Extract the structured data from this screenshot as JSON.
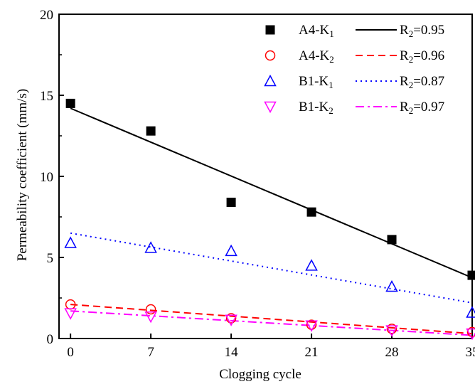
{
  "chart_data": {
    "type": "scatter",
    "title": "",
    "xlabel": "Clogging cycle",
    "ylabel": "Permeability coefficient (mm/s)",
    "xlim": [
      -1,
      35
    ],
    "ylim": [
      0,
      20
    ],
    "xticks": [
      0,
      7,
      14,
      21,
      28,
      35
    ],
    "yticks": [
      0,
      5,
      10,
      15,
      20
    ],
    "x": [
      0,
      7,
      14,
      21,
      28,
      35
    ],
    "legend": "top-right",
    "grid": false,
    "series": [
      {
        "name_main": "A4-K",
        "name_sub": "1",
        "marker": "filled-square",
        "color": "#000000",
        "values": [
          14.5,
          12.8,
          8.4,
          7.8,
          6.1,
          3.9
        ],
        "fit": {
          "style": "solid",
          "start": 14.2,
          "end": 3.75
        },
        "r2_main": "R",
        "r2_sub": "2",
        "r2_value": "=0.95"
      },
      {
        "name_main": "A4-K",
        "name_sub": "2",
        "marker": "open-circle",
        "color": "#ff0000",
        "values": [
          2.1,
          1.8,
          1.25,
          0.85,
          0.6,
          0.4
        ],
        "fit": {
          "style": "dashed",
          "start": 2.1,
          "end": 0.3
        },
        "r2_main": "R",
        "r2_sub": "2",
        "r2_value": "=0.96"
      },
      {
        "name_main": "B1-K",
        "name_sub": "1",
        "marker": "open-triangle-up",
        "color": "#0000ff",
        "values": [
          5.9,
          5.6,
          5.4,
          4.5,
          3.2,
          1.6
        ],
        "fit": {
          "style": "dotted",
          "start": 6.5,
          "end": 2.2
        },
        "r2_main": "R",
        "r2_sub": "2",
        "r2_value": "=0.87"
      },
      {
        "name_main": "B1-K",
        "name_sub": "2",
        "marker": "open-triangle-down",
        "color": "#ff00ff",
        "values": [
          1.55,
          1.35,
          1.15,
          0.8,
          0.5,
          0.3
        ],
        "fit": {
          "style": "dashdot",
          "start": 1.7,
          "end": 0.2
        },
        "r2_main": "R",
        "r2_sub": "2",
        "r2_value": "=0.97"
      }
    ]
  }
}
